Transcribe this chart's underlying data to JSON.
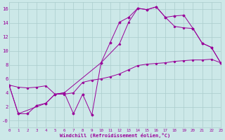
{
  "xlabel": "Windchill (Refroidissement éolien,°C)",
  "bg_color": "#cce8e8",
  "grid_color": "#aacccc",
  "line_color": "#990099",
  "xlim": [
    0,
    23
  ],
  "ylim": [
    -1,
    17
  ],
  "xticks": [
    0,
    1,
    2,
    3,
    4,
    5,
    6,
    7,
    8,
    9,
    10,
    11,
    12,
    13,
    14,
    15,
    16,
    17,
    18,
    19,
    20,
    21,
    22,
    23
  ],
  "yticks": [
    0,
    2,
    4,
    6,
    8,
    10,
    12,
    14,
    16
  ],
  "ytick_labels": [
    "-0",
    "2",
    "4",
    "6",
    "8",
    "10",
    "12",
    "14",
    "16"
  ],
  "line1_x": [
    0,
    1,
    2,
    3,
    4,
    5,
    6,
    7,
    8,
    9,
    10,
    11,
    12,
    13,
    14,
    15,
    16,
    17,
    18,
    19,
    20,
    21,
    22,
    23
  ],
  "line1_y": [
    5.1,
    4.8,
    4.7,
    4.8,
    5.0,
    3.8,
    3.8,
    4.0,
    5.5,
    5.8,
    6.0,
    6.3,
    6.7,
    7.3,
    7.9,
    8.1,
    8.2,
    8.3,
    8.5,
    8.6,
    8.7,
    8.7,
    8.8,
    8.3
  ],
  "line2_x": [
    0,
    1,
    2,
    3,
    4,
    5,
    6,
    7,
    8,
    9,
    10,
    11,
    12,
    13,
    14,
    15,
    16,
    17,
    18,
    19,
    20,
    21,
    22,
    23
  ],
  "line2_y": [
    5.1,
    1.0,
    1.0,
    2.2,
    2.5,
    3.8,
    4.0,
    1.0,
    3.8,
    0.8,
    8.3,
    11.2,
    14.1,
    14.8,
    16.1,
    15.9,
    16.3,
    14.8,
    15.0,
    15.1,
    13.2,
    11.1,
    10.5,
    8.3
  ],
  "line3_x": [
    0,
    1,
    4,
    5,
    6,
    10,
    12,
    13,
    14,
    15,
    16,
    17,
    18,
    19,
    20,
    21,
    22,
    23
  ],
  "line3_y": [
    5.1,
    1.0,
    2.5,
    3.8,
    4.0,
    8.3,
    11.0,
    14.1,
    16.1,
    15.9,
    16.3,
    14.8,
    13.5,
    13.3,
    13.2,
    11.1,
    10.5,
    8.3
  ],
  "figsize": [
    3.2,
    2.0
  ],
  "dpi": 100
}
